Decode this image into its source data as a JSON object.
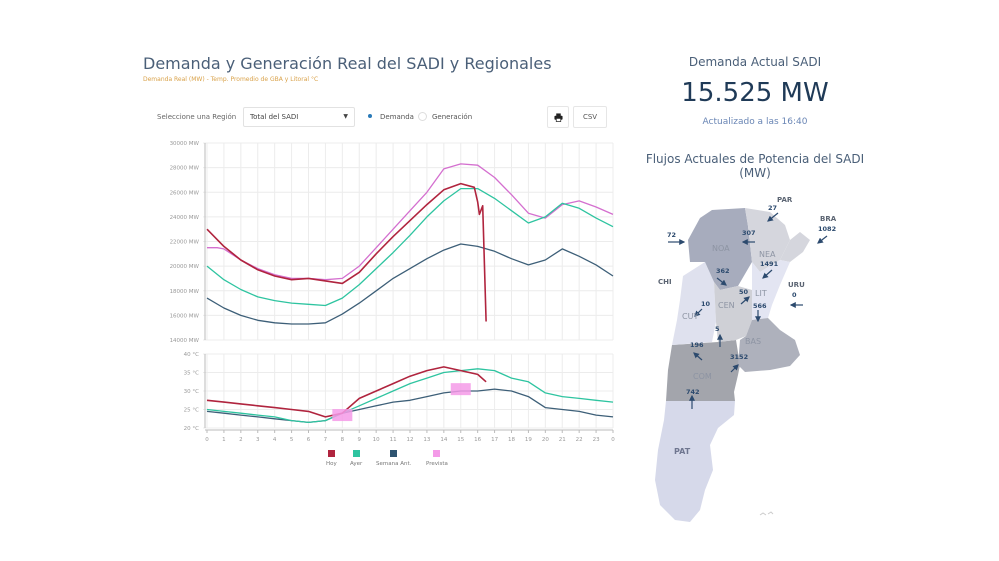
{
  "header": {
    "title": "Demanda y Generación Real del SADI y Regionales",
    "subtitle": "Demanda Real (MW) - Temp. Promedio de GBA y Litoral °C"
  },
  "controls": {
    "region_label": "Seleccione una Región",
    "region_value": "Total del SADI",
    "radio_demanda": "Demanda",
    "radio_generacion": "Generación",
    "selected": "Demanda",
    "print_icon": "printer-icon",
    "csv_label": "CSV"
  },
  "colors": {
    "hoy": "#b0243e",
    "ayer": "#2ec4a0",
    "semana": "#3d5f78",
    "prevista": "#e07ad8",
    "accent": "#2a7ab8"
  },
  "legend": [
    {
      "label": "Hoy",
      "color": "#b0243e"
    },
    {
      "label": "Ayer",
      "color": "#2ec4a0"
    },
    {
      "label": "Semana Ant.",
      "color": "#2e5470"
    },
    {
      "label": "Prevista",
      "color": "#f49ae8"
    }
  ],
  "chart_data": [
    {
      "type": "line",
      "title": "Demanda Real (MW)",
      "ylim": [
        14000,
        30000
      ],
      "yticks": [
        "30000 MW",
        "28000 MW",
        "26000 MW",
        "24000 MW",
        "22000 MW",
        "20000 MW",
        "18000 MW",
        "16000 MW",
        "14000 MW"
      ],
      "ytick_values": [
        30000,
        28000,
        26000,
        24000,
        22000,
        20000,
        18000,
        16000,
        14000
      ],
      "xlim": [
        0,
        24
      ],
      "grid": true,
      "series": [
        {
          "name": "Prevista",
          "color": "#d46fcf",
          "x": [
            0,
            0.6,
            1,
            2,
            3,
            4,
            5,
            6,
            7,
            8,
            9,
            10,
            11,
            12,
            13,
            14,
            15,
            16,
            17,
            18,
            19,
            20,
            21,
            22,
            23,
            24
          ],
          "values": [
            21500,
            21500,
            21400,
            20500,
            19800,
            19300,
            19000,
            19000,
            18900,
            19000,
            20000,
            21500,
            23000,
            24500,
            26000,
            27900,
            28300,
            28200,
            27200,
            25800,
            24300,
            23900,
            25000,
            25300,
            24800,
            24200
          ]
        },
        {
          "name": "Semana Ant.",
          "color": "#3d5f78",
          "x": [
            0,
            1,
            2,
            3,
            4,
            5,
            6,
            7,
            8,
            9,
            10,
            11,
            12,
            13,
            14,
            15,
            16,
            17,
            18,
            19,
            20,
            21,
            22,
            23,
            24
          ],
          "values": [
            17400,
            16600,
            16000,
            15600,
            15400,
            15300,
            15300,
            15400,
            16100,
            17000,
            18000,
            19000,
            19800,
            20600,
            21300,
            21800,
            21600,
            21200,
            20600,
            20100,
            20500,
            21400,
            20800,
            20100,
            19200
          ]
        },
        {
          "name": "Ayer",
          "color": "#2ec4a0",
          "x": [
            0,
            1,
            2,
            3,
            4,
            5,
            6,
            7,
            8,
            9,
            10,
            11,
            12,
            13,
            14,
            15,
            16,
            17,
            18,
            19,
            20,
            21,
            22,
            23,
            24
          ],
          "values": [
            20000,
            18900,
            18100,
            17500,
            17200,
            17000,
            16900,
            16800,
            17400,
            18500,
            19800,
            21100,
            22500,
            24000,
            25300,
            26300,
            26300,
            25500,
            24500,
            23500,
            24000,
            25100,
            24700,
            23900,
            23200
          ]
        },
        {
          "name": "Hoy",
          "color": "#b0243e",
          "x": [
            0,
            1,
            2,
            3,
            4,
            5,
            6,
            7,
            8,
            9,
            10,
            11,
            12,
            13,
            14,
            15,
            15.8,
            16,
            16.1,
            16.3,
            16.5
          ],
          "values": [
            23000,
            21600,
            20500,
            19700,
            19200,
            18900,
            19000,
            18800,
            18600,
            19500,
            21000,
            22400,
            23700,
            25000,
            26200,
            26700,
            26400,
            25200,
            24200,
            24900,
            15500
          ]
        }
      ]
    },
    {
      "type": "line",
      "title": "Temp. Promedio de GBA y Litoral °C",
      "ylim": [
        20,
        40
      ],
      "yticks": [
        "40 °C",
        "35 °C",
        "30 °C",
        "25 °C",
        "20 °C"
      ],
      "ytick_values": [
        40,
        35,
        30,
        25,
        20
      ],
      "xlim": [
        0,
        24
      ],
      "xticks": [
        "0",
        "1",
        "2",
        "3",
        "4",
        "5",
        "6",
        "7",
        "8",
        "9",
        "10",
        "11",
        "12",
        "13",
        "14",
        "15",
        "16",
        "17",
        "18",
        "19",
        "20",
        "21",
        "22",
        "23",
        "0"
      ],
      "grid": true,
      "series": [
        {
          "name": "Semana Ant.",
          "color": "#3d5f78",
          "x": [
            0,
            1,
            2,
            3,
            4,
            5,
            6,
            7,
            8,
            9,
            10,
            11,
            12,
            13,
            14,
            15,
            16,
            17,
            18,
            19,
            20,
            21,
            22,
            23,
            24
          ],
          "values": [
            24.5,
            24,
            23.5,
            23,
            22.5,
            22,
            21.5,
            22,
            24,
            25,
            26,
            27,
            27.5,
            28.5,
            29.5,
            30,
            30,
            30.5,
            30,
            28.5,
            25.5,
            25,
            24.5,
            23.5,
            23
          ]
        },
        {
          "name": "Ayer",
          "color": "#2ec4a0",
          "x": [
            0,
            1,
            2,
            3,
            4,
            5,
            6,
            7,
            8,
            9,
            10,
            11,
            12,
            13,
            14,
            15,
            16,
            17,
            18,
            19,
            20,
            21,
            22,
            23,
            24
          ],
          "values": [
            25,
            24.5,
            24,
            23.5,
            23,
            22,
            21.5,
            22,
            24,
            26,
            28,
            30,
            32,
            33.5,
            35,
            35.5,
            36,
            35.5,
            33.5,
            32.5,
            29.5,
            28.5,
            28,
            27.5,
            27
          ]
        },
        {
          "name": "Hoy",
          "color": "#b0243e",
          "x": [
            0,
            1,
            2,
            3,
            4,
            5,
            6,
            7,
            8,
            9,
            10,
            11,
            12,
            13,
            14,
            15,
            16,
            16.5
          ],
          "values": [
            27.5,
            27,
            26.5,
            26,
            25.5,
            25,
            24.5,
            23,
            24,
            28,
            30,
            32,
            34,
            35.5,
            36.5,
            35.5,
            34.5,
            32.5
          ]
        },
        {
          "name": "Prevista",
          "color": "#f49ae8",
          "type": "marker",
          "x": [
            8,
            15
          ],
          "values": [
            23.5,
            30.5
          ]
        }
      ]
    }
  ],
  "right": {
    "demand_title": "Demanda Actual SADI",
    "demand_value": "15.525 MW",
    "updated": "Actualizado a las 16:40",
    "flows_title": "Flujos Actuales de Potencia del SADI (MW)"
  },
  "map": {
    "countries": [
      {
        "label": "PAR",
        "value": "27"
      },
      {
        "label": "BRA",
        "value": "1082"
      },
      {
        "label": "CHI",
        "value": "72"
      },
      {
        "label": "URU",
        "value": "0"
      }
    ],
    "regions": [
      "NOA",
      "NEA",
      "CEN",
      "LIT",
      "CUY",
      "BAS",
      "COM",
      "PAT"
    ],
    "flows": {
      "noa_nea": "307",
      "nea_lit": "1491",
      "noa_cen": "362",
      "cen_lit": "50",
      "lit_bas": "566",
      "cuy_cen": "10",
      "cen_com": "5",
      "com_cuy": "196",
      "com_bas": "3152",
      "pat_com": "742"
    }
  }
}
